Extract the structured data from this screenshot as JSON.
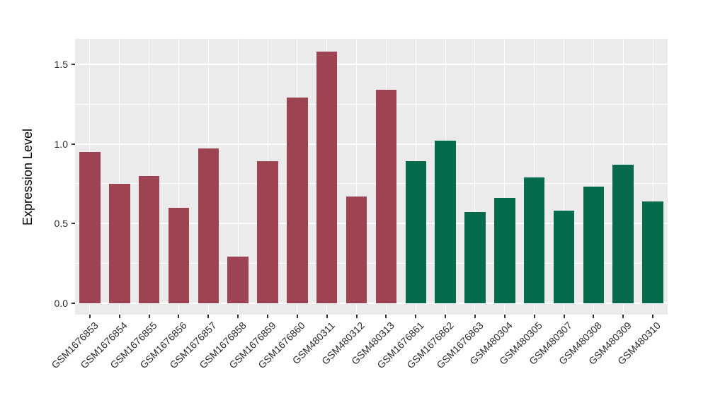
{
  "chart_data": {
    "type": "bar",
    "title": "",
    "xlabel": "",
    "ylabel": "Expression Level",
    "ylim": [
      -0.073,
      1.66
    ],
    "yticks": [
      0,
      0.5,
      1.0,
      1.5
    ],
    "ytick_labels": [
      "0.0",
      "0.5",
      "1.0",
      "1.5"
    ],
    "yticks_minor": [
      0.25,
      0.75,
      1.25
    ],
    "grid": "on",
    "legend_position": "none",
    "categories": [
      "GSM1676853",
      "GSM1676854",
      "GSM1676855",
      "GSM1676856",
      "GSM1676857",
      "GSM1676858",
      "GSM1676859",
      "GSM1676860",
      "GSM480311",
      "GSM480312",
      "GSM480313",
      "GSM1676861",
      "GSM1676862",
      "GSM1676863",
      "GSM480304",
      "GSM480305",
      "GSM480307",
      "GSM480308",
      "GSM480309",
      "GSM480310"
    ],
    "values": [
      0.95,
      0.75,
      0.8,
      0.6,
      0.97,
      0.29,
      0.89,
      1.29,
      1.58,
      0.67,
      1.34,
      0.89,
      1.02,
      0.57,
      0.66,
      0.79,
      0.58,
      0.73,
      0.87,
      0.64
    ],
    "groups": [
      "A",
      "A",
      "A",
      "A",
      "A",
      "A",
      "A",
      "A",
      "A",
      "A",
      "A",
      "B",
      "B",
      "B",
      "B",
      "B",
      "B",
      "B",
      "B",
      "B"
    ],
    "group_colors": {
      "A": "#9E4351",
      "B": "#066A4C"
    },
    "panel_bg": "#EBEBEB",
    "grid_color": "#FFFFFF",
    "tick_color": "#333333",
    "axis_text_color": "#2b2b2b"
  }
}
